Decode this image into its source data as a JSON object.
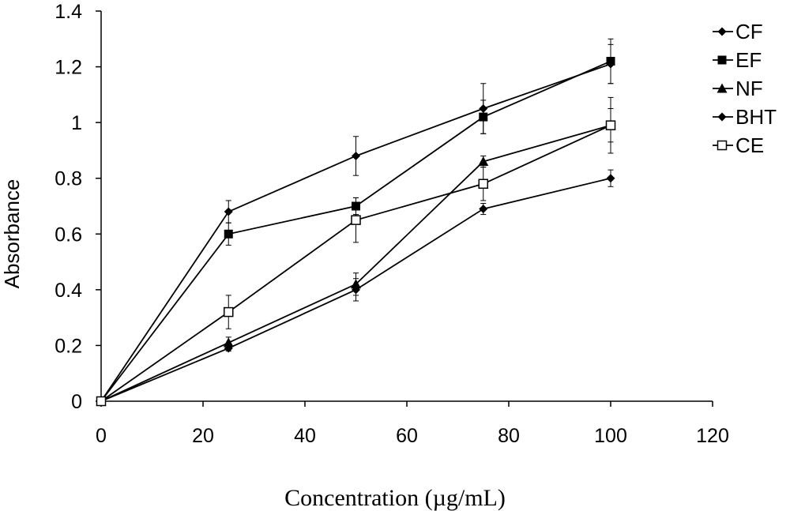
{
  "chart_data": {
    "type": "line",
    "title": "",
    "xlabel": "Concentration (µg/mL)",
    "ylabel": "Absorbance",
    "xlim": [
      0,
      120
    ],
    "ylim": [
      0,
      1.4
    ],
    "xticks": [
      0,
      20,
      40,
      60,
      80,
      100,
      120
    ],
    "yticks": [
      0,
      0.2,
      0.4,
      0.6,
      0.8,
      1,
      1.2,
      1.4
    ],
    "xtick_labels": [
      "0",
      "20",
      "40",
      "60",
      "80",
      "100",
      "120"
    ],
    "ytick_labels": [
      "0",
      "0.2",
      "0.4",
      "0.6",
      "0.8",
      "1",
      "1.2",
      "1.4"
    ],
    "grid": false,
    "legend_position": "right",
    "x": [
      0,
      25,
      50,
      75,
      100
    ],
    "series": [
      {
        "name": "CF",
        "marker": "diamond",
        "color": "#000000",
        "values": [
          0,
          0.68,
          0.88,
          1.05,
          1.21
        ],
        "errors": [
          0,
          0.04,
          0.07,
          0.09,
          0.07
        ]
      },
      {
        "name": "EF",
        "marker": "square-filled",
        "color": "#000000",
        "values": [
          0,
          0.6,
          0.7,
          1.02,
          1.22
        ],
        "errors": [
          0,
          0.04,
          0.03,
          0.06,
          0.08
        ]
      },
      {
        "name": "NF",
        "marker": "triangle",
        "color": "#000000",
        "values": [
          0,
          0.21,
          0.42,
          0.86,
          0.99
        ],
        "errors": [
          0,
          0.02,
          0.04,
          0.02,
          0.06
        ]
      },
      {
        "name": "BHT",
        "marker": "diamond",
        "color": "#000000",
        "values": [
          0,
          0.19,
          0.4,
          0.69,
          0.8
        ],
        "errors": [
          0,
          0.01,
          0.04,
          0.02,
          0.03
        ]
      },
      {
        "name": "CE",
        "marker": "square-open",
        "color": "#000000",
        "values": [
          0,
          0.32,
          0.65,
          0.78,
          0.99
        ],
        "errors": [
          0,
          0.06,
          0.08,
          0.06,
          0.1
        ]
      }
    ]
  }
}
